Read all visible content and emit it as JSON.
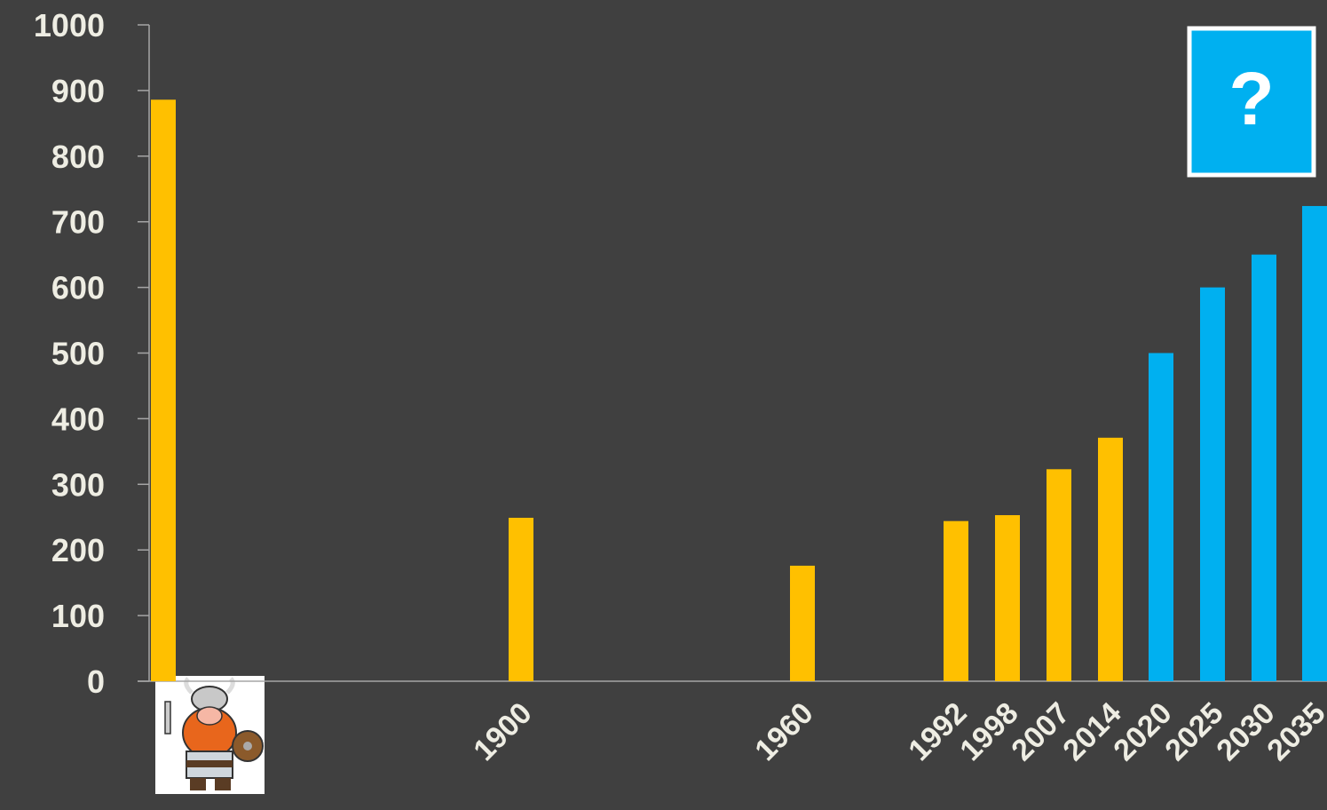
{
  "chart_data": {
    "type": "bar",
    "categories": [
      null,
      "1900",
      "1960",
      "1992",
      "1998",
      "2007",
      "2014",
      "2020",
      "2025",
      "2030",
      "2035"
    ],
    "values": [
      886,
      249,
      176,
      244,
      253,
      323,
      371,
      500,
      600,
      650,
      724
    ],
    "colors": [
      "#ffc000",
      "#ffc000",
      "#ffc000",
      "#ffc000",
      "#ffc000",
      "#ffc000",
      "#ffc000",
      "#00b0f0",
      "#00b0f0",
      "#00b0f0",
      "#00b0f0"
    ],
    "ylim": [
      0,
      1000
    ],
    "yticks": [
      0,
      100,
      200,
      300,
      400,
      500,
      600,
      700,
      800,
      900,
      1000
    ],
    "annotation": "?"
  }
}
